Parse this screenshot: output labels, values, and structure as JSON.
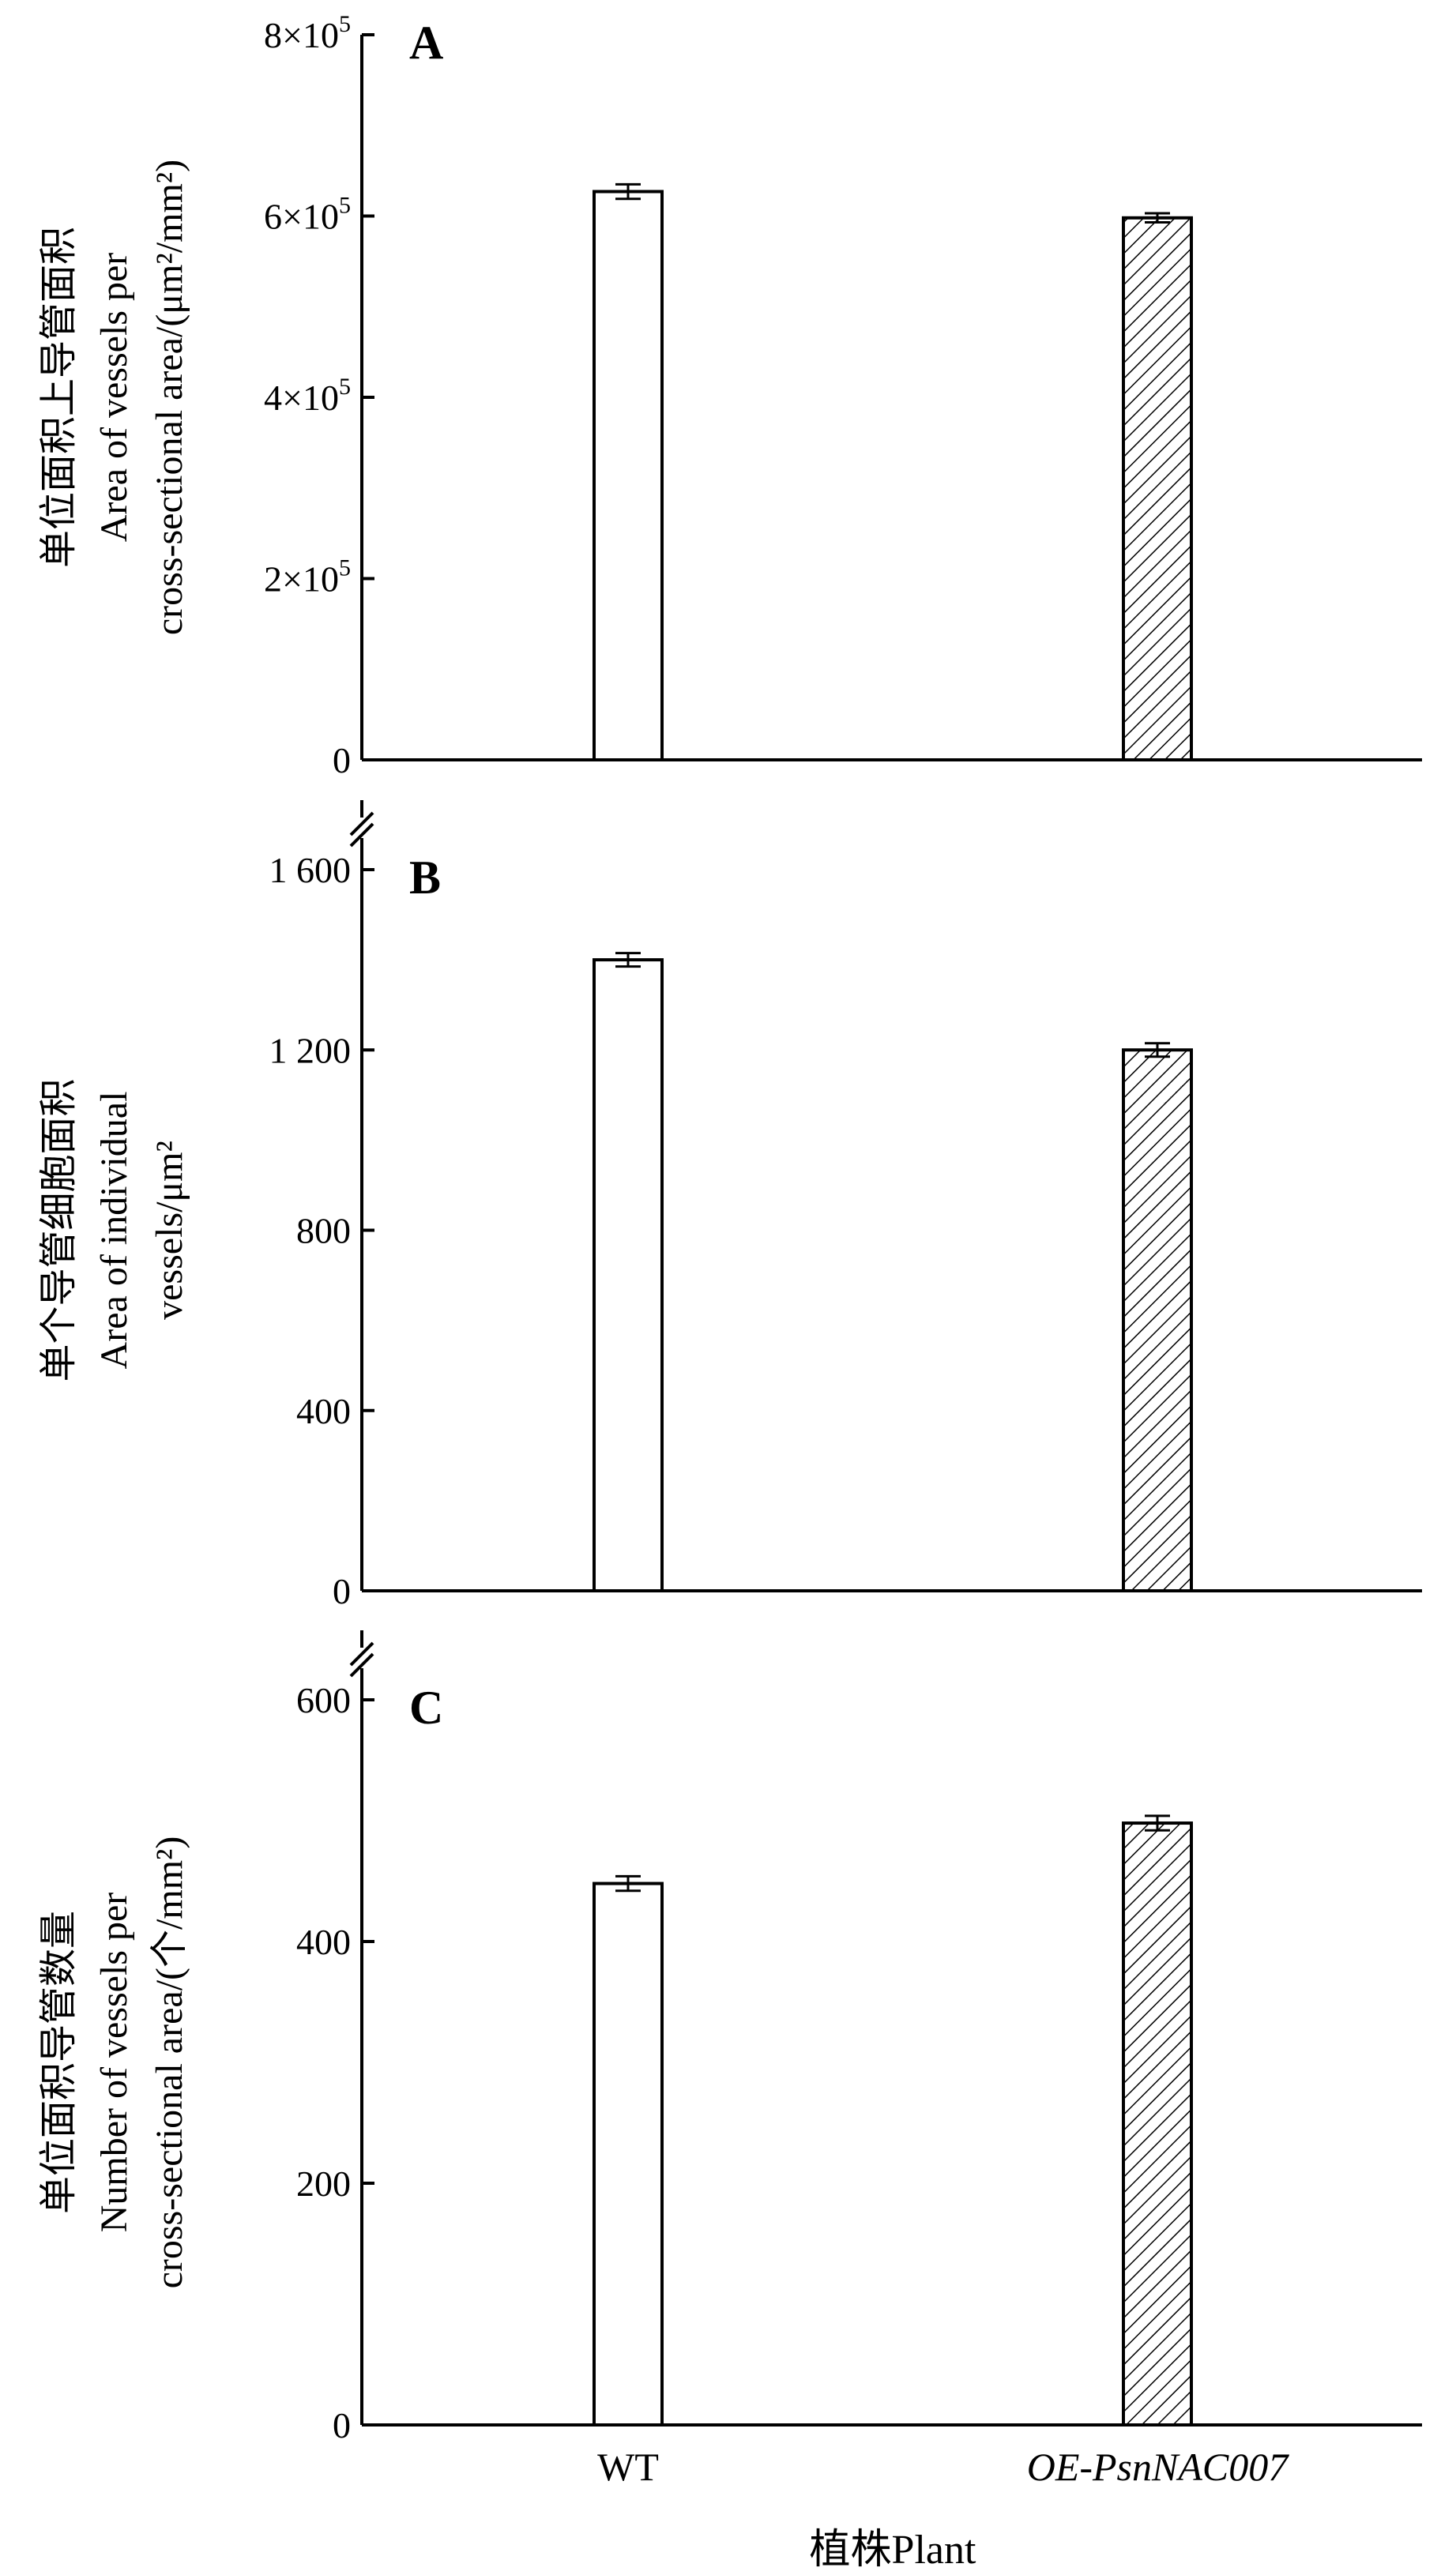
{
  "chart_data": [
    {
      "type": "bar",
      "panel_label": "A",
      "categories": [
        "WT",
        "OE-PsnNAC007"
      ],
      "values": [
        627000,
        598000
      ],
      "errors": [
        8000,
        5000
      ],
      "patterns": [
        "none",
        "hatched"
      ],
      "ylim": [
        0,
        800000
      ],
      "yticks": [
        0,
        200000,
        400000,
        600000,
        800000
      ],
      "ytick_labels": [
        {
          "mantissa": "0",
          "exp": ""
        },
        {
          "mantissa": "2×10",
          "exp": "5"
        },
        {
          "mantissa": "4×10",
          "exp": "5"
        },
        {
          "mantissa": "6×10",
          "exp": "5"
        },
        {
          "mantissa": "8×10",
          "exp": "5"
        }
      ],
      "ylabel_zh": "单位面积上导管面积",
      "ylabel_lines": [
        "Area of vessels per",
        "cross-sectional area/(μm²/mm²)"
      ]
    },
    {
      "type": "bar",
      "panel_label": "B",
      "categories": [
        "WT",
        "OE-PsnNAC007"
      ],
      "values": [
        1400,
        1200
      ],
      "errors": [
        15,
        15
      ],
      "patterns": [
        "none",
        "hatched"
      ],
      "ylim": [
        0,
        1600
      ],
      "yticks": [
        0,
        400,
        800,
        1200,
        1600
      ],
      "ytick_labels": [
        {
          "mantissa": "0",
          "exp": ""
        },
        {
          "mantissa": "400",
          "exp": ""
        },
        {
          "mantissa": "800",
          "exp": ""
        },
        {
          "mantissa": "1 200",
          "exp": ""
        },
        {
          "mantissa": "1 600",
          "exp": ""
        }
      ],
      "ylabel_zh": "单个导管细胞面积",
      "ylabel_lines": [
        "Area of individual",
        "vessels/μm²"
      ]
    },
    {
      "type": "bar",
      "panel_label": "C",
      "categories": [
        "WT",
        "OE-PsnNAC007"
      ],
      "values": [
        448,
        498
      ],
      "errors": [
        6,
        6
      ],
      "patterns": [
        "none",
        "hatched"
      ],
      "ylim": [
        0,
        600
      ],
      "yticks": [
        0,
        200,
        400,
        600
      ],
      "ytick_labels": [
        {
          "mantissa": "0",
          "exp": ""
        },
        {
          "mantissa": "200",
          "exp": ""
        },
        {
          "mantissa": "400",
          "exp": ""
        },
        {
          "mantissa": "600",
          "exp": ""
        }
      ],
      "ylabel_zh": "单位面积导管数量",
      "ylabel_lines": [
        "Number of vessels per",
        "cross-sectional area/(个/mm²)"
      ]
    }
  ],
  "categories": [
    "WT",
    "OE-PsnNAC007"
  ],
  "xlabel": "植株Plant",
  "colors": {
    "bar_fill": "#ffffff",
    "stroke": "#000000",
    "hatch": "#000000"
  }
}
